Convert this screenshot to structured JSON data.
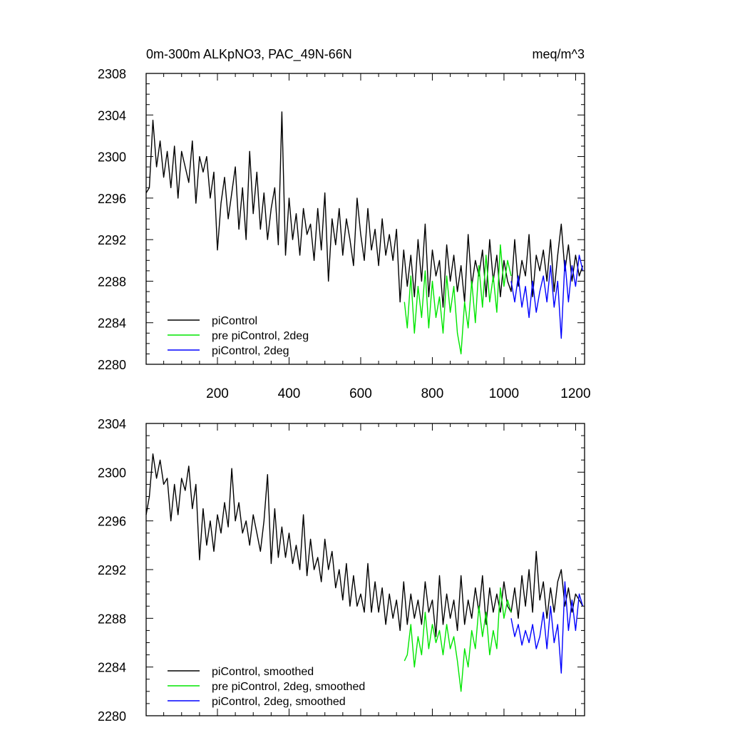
{
  "chart_data": [
    {
      "type": "line",
      "title": "0m-300m ALKpNO3, PAC_49N-66N",
      "units": "meq/m^3",
      "xlabel": "",
      "ylabel": "",
      "xlim": [
        1,
        1225
      ],
      "ylim": [
        2280,
        2308
      ],
      "xticks": [
        200,
        400,
        600,
        800,
        1000,
        1200
      ],
      "xtick_labels": [
        "200",
        "400",
        "600",
        "800",
        "1000",
        "1200"
      ],
      "yticks": [
        2280,
        2284,
        2288,
        2292,
        2296,
        2300,
        2304,
        2308
      ],
      "ytick_labels": [
        "2280",
        "2284",
        "2288",
        "2292",
        "2296",
        "2300",
        "2304",
        "2308"
      ],
      "legend": "bottom-left",
      "series": [
        {
          "name": "piControl",
          "color": "#000000",
          "x": [
            1,
            10,
            20,
            30,
            40,
            50,
            60,
            70,
            80,
            90,
            100,
            110,
            120,
            130,
            140,
            150,
            160,
            170,
            180,
            190,
            200,
            210,
            220,
            230,
            240,
            250,
            260,
            270,
            280,
            290,
            300,
            310,
            320,
            330,
            340,
            350,
            360,
            370,
            380,
            390,
            400,
            410,
            420,
            430,
            440,
            450,
            460,
            470,
            480,
            490,
            500,
            510,
            520,
            530,
            540,
            550,
            560,
            570,
            580,
            590,
            600,
            610,
            620,
            630,
            640,
            650,
            660,
            670,
            680,
            690,
            700,
            710,
            720,
            730,
            740,
            750,
            760,
            770,
            780,
            790,
            800,
            810,
            820,
            830,
            840,
            850,
            860,
            870,
            880,
            890,
            900,
            910,
            920,
            930,
            940,
            950,
            960,
            970,
            980,
            990,
            1000,
            1010,
            1020,
            1030,
            1040,
            1050,
            1060,
            1070,
            1080,
            1090,
            1100,
            1110,
            1120,
            1130,
            1140,
            1150,
            1160,
            1170,
            1180,
            1190,
            1200,
            1210,
            1220
          ],
          "values": [
            2296.5,
            2297.0,
            2303.5,
            2299.0,
            2301.5,
            2298.0,
            2300.5,
            2297.0,
            2301.0,
            2296.0,
            2300.5,
            2299.0,
            2297.5,
            2301.5,
            2295.5,
            2300.0,
            2298.5,
            2300.0,
            2296.0,
            2298.5,
            2291.0,
            2295.5,
            2298.0,
            2294.0,
            2296.5,
            2299.0,
            2293.0,
            2297.0,
            2292.0,
            2300.5,
            2294.5,
            2298.5,
            2293.0,
            2296.5,
            2292.0,
            2295.0,
            2297.0,
            2291.5,
            2304.3,
            2290.5,
            2296.0,
            2292.0,
            2294.5,
            2290.5,
            2295.0,
            2292.5,
            2293.5,
            2290.0,
            2295.0,
            2291.0,
            2296.5,
            2288.0,
            2294.0,
            2291.5,
            2295.0,
            2290.5,
            2294.0,
            2292.0,
            2289.5,
            2296.0,
            2292.5,
            2290.0,
            2295.0,
            2291.0,
            2293.0,
            2289.5,
            2294.0,
            2290.5,
            2292.5,
            2290.0,
            2293.0,
            2286.0,
            2291.0,
            2287.5,
            2290.5,
            2286.5,
            2292.0,
            2288.0,
            2293.5,
            2286.5,
            2291.0,
            2288.5,
            2290.0,
            2285.5,
            2291.5,
            2288.0,
            2290.5,
            2287.0,
            2289.5,
            2286.0,
            2292.5,
            2287.5,
            2290.0,
            2288.5,
            2291.0,
            2286.5,
            2292.0,
            2288.0,
            2290.5,
            2286.5,
            2290.0,
            2288.0,
            2287.0,
            2292.0,
            2287.5,
            2290.0,
            2288.5,
            2292.5,
            2286.5,
            2290.5,
            2289.0,
            2291.0,
            2288.0,
            2292.0,
            2287.0,
            2290.5,
            2293.5,
            2289.0,
            2291.5,
            2288.0,
            2290.5,
            2288.5,
            2289.5
          ]
        },
        {
          "name": "pre piControl, 2deg",
          "color": "#00e600",
          "x": [
            722,
            730,
            740,
            750,
            760,
            770,
            780,
            790,
            800,
            810,
            820,
            830,
            840,
            850,
            860,
            870,
            880,
            890,
            900,
            910,
            920,
            930,
            940,
            950,
            960,
            970,
            980,
            990,
            1000,
            1010,
            1020
          ],
          "values": [
            2286.0,
            2283.5,
            2288.5,
            2283.0,
            2287.5,
            2284.5,
            2289.0,
            2283.5,
            2288.0,
            2284.5,
            2286.5,
            2283.0,
            2288.5,
            2285.0,
            2287.5,
            2283.0,
            2281.0,
            2286.0,
            2283.5,
            2288.0,
            2284.0,
            2289.5,
            2285.5,
            2290.5,
            2286.0,
            2288.5,
            2285.0,
            2291.5,
            2287.5,
            2290.0,
            2288.5
          ]
        },
        {
          "name": "piControl, 2deg",
          "color": "#0000ff",
          "x": [
            1020,
            1030,
            1040,
            1050,
            1060,
            1070,
            1080,
            1090,
            1100,
            1110,
            1120,
            1130,
            1140,
            1150,
            1160,
            1170,
            1180,
            1190,
            1200,
            1210,
            1220
          ],
          "values": [
            2288.0,
            2286.0,
            2288.5,
            2285.5,
            2287.5,
            2284.5,
            2288.0,
            2285.0,
            2287.0,
            2288.5,
            2286.0,
            2289.5,
            2285.5,
            2288.0,
            2282.5,
            2290.0,
            2286.0,
            2289.5,
            2287.5,
            2290.5,
            2289.0
          ]
        }
      ]
    },
    {
      "type": "line",
      "title": "",
      "xlabel": "",
      "ylabel": "",
      "xlim": [
        1,
        1225
      ],
      "ylim": [
        2280,
        2304
      ],
      "xticks": [
        200,
        400,
        600,
        800,
        1000,
        1200
      ],
      "yticks": [
        2280,
        2284,
        2288,
        2292,
        2296,
        2300,
        2304
      ],
      "ytick_labels": [
        "2280",
        "2284",
        "2288",
        "2292",
        "2296",
        "2300",
        "2304"
      ],
      "legend": "bottom-left",
      "series": [
        {
          "name": "piControl, smoothed",
          "color": "#000000",
          "x": [
            1,
            10,
            20,
            30,
            40,
            50,
            60,
            70,
            80,
            90,
            100,
            110,
            120,
            130,
            140,
            150,
            160,
            170,
            180,
            190,
            200,
            210,
            220,
            230,
            240,
            250,
            260,
            270,
            280,
            290,
            300,
            310,
            320,
            330,
            340,
            350,
            360,
            370,
            380,
            390,
            400,
            410,
            420,
            430,
            440,
            450,
            460,
            470,
            480,
            490,
            500,
            510,
            520,
            530,
            540,
            550,
            560,
            570,
            580,
            590,
            600,
            610,
            620,
            630,
            640,
            650,
            660,
            670,
            680,
            690,
            700,
            710,
            720,
            730,
            740,
            750,
            760,
            770,
            780,
            790,
            800,
            810,
            820,
            830,
            840,
            850,
            860,
            870,
            880,
            890,
            900,
            910,
            920,
            930,
            940,
            950,
            960,
            970,
            980,
            990,
            1000,
            1010,
            1020,
            1030,
            1040,
            1050,
            1060,
            1070,
            1080,
            1090,
            1100,
            1110,
            1120,
            1130,
            1140,
            1150,
            1160,
            1170,
            1180,
            1190,
            1200,
            1210,
            1220
          ],
          "values": [
            2296.5,
            2298.0,
            2301.5,
            2299.5,
            2301.0,
            2299.0,
            2299.5,
            2296.0,
            2299.0,
            2296.5,
            2299.5,
            2298.5,
            2300.5,
            2297.0,
            2299.0,
            2292.8,
            2297.0,
            2294.0,
            2296.0,
            2293.5,
            2296.5,
            2295.0,
            2297.5,
            2295.5,
            2300.3,
            2296.0,
            2297.5,
            2295.0,
            2296.0,
            2294.0,
            2296.5,
            2295.0,
            2293.5,
            2296.0,
            2299.8,
            2292.5,
            2297.0,
            2293.0,
            2295.5,
            2293.0,
            2295.0,
            2292.5,
            2294.0,
            2292.0,
            2296.5,
            2291.5,
            2294.5,
            2292.0,
            2293.0,
            2291.0,
            2294.5,
            2292.0,
            2293.5,
            2290.5,
            2292.0,
            2289.5,
            2292.5,
            2289.0,
            2291.5,
            2289.0,
            2290.0,
            2288.5,
            2292.5,
            2288.5,
            2291.0,
            2288.5,
            2290.5,
            2287.5,
            2290.0,
            2288.0,
            2289.5,
            2287.0,
            2291.0,
            2287.5,
            2290.0,
            2288.0,
            2289.5,
            2287.5,
            2291.0,
            2288.5,
            2289.5,
            2286.5,
            2291.5,
            2287.5,
            2290.0,
            2288.0,
            2289.5,
            2287.0,
            2291.5,
            2287.5,
            2289.5,
            2288.0,
            2290.5,
            2288.5,
            2291.5,
            2287.5,
            2290.5,
            2288.5,
            2290.0,
            2288.5,
            2291.0,
            2289.0,
            2288.5,
            2290.5,
            2288.0,
            2291.5,
            2289.0,
            2292.0,
            2288.5,
            2293.5,
            2289.5,
            2291.0,
            2288.0,
            2290.5,
            2288.5,
            2291.0,
            2292.0,
            2289.0,
            2290.5,
            2288.5,
            2290.0,
            2289.5,
            2289.0
          ]
        },
        {
          "name": "pre piControl, 2deg, smoothed",
          "color": "#00e600",
          "x": [
            722,
            730,
            740,
            750,
            760,
            770,
            780,
            790,
            800,
            810,
            820,
            830,
            840,
            850,
            860,
            870,
            880,
            890,
            900,
            910,
            920,
            930,
            940,
            950,
            960,
            970,
            980,
            990,
            1000,
            1010,
            1020
          ],
          "values": [
            2284.5,
            2285.0,
            2287.5,
            2284.0,
            2286.5,
            2285.0,
            2288.5,
            2285.5,
            2287.5,
            2286.0,
            2287.0,
            2285.0,
            2287.5,
            2285.5,
            2286.5,
            2284.5,
            2282.0,
            2285.5,
            2284.0,
            2287.0,
            2285.5,
            2289.0,
            2286.5,
            2288.5,
            2285.0,
            2287.0,
            2285.5,
            2290.5,
            2288.0,
            2289.5,
            2288.5
          ]
        },
        {
          "name": "piControl, 2deg, smoothed",
          "color": "#0000ff",
          "x": [
            1020,
            1030,
            1040,
            1050,
            1060,
            1070,
            1080,
            1090,
            1100,
            1110,
            1120,
            1130,
            1140,
            1150,
            1160,
            1170,
            1180,
            1190,
            1200,
            1210,
            1220
          ],
          "values": [
            2288.0,
            2286.5,
            2287.5,
            2285.8,
            2287.0,
            2286.0,
            2287.5,
            2285.5,
            2286.5,
            2288.5,
            2285.5,
            2289.0,
            2286.0,
            2287.5,
            2283.5,
            2291.0,
            2287.0,
            2289.5,
            2287.0,
            2290.0,
            2289.0
          ]
        }
      ]
    }
  ]
}
